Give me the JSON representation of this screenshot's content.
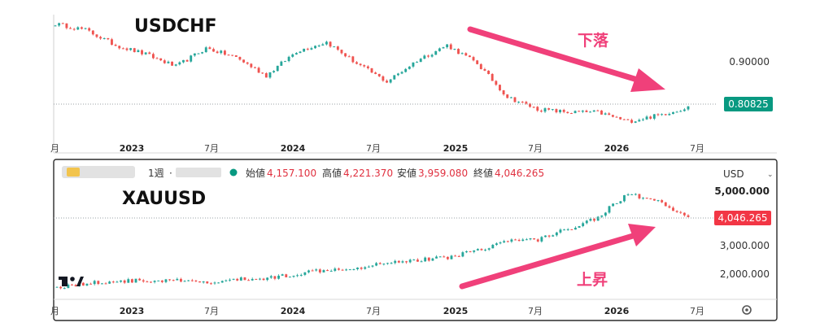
{
  "charts": [
    {
      "id": "top",
      "symbol_label": "USDCHF",
      "price_ticks": [
        "0.90000"
      ],
      "last_price": "0.80825",
      "annotation": "下落",
      "x_ticks": [
        "月",
        "2023",
        "7月",
        "2024",
        "7月",
        "2025",
        "7月",
        "2026",
        "7月"
      ],
      "colors": {
        "up": "#26a69a",
        "down": "#ef5350",
        "badge": "#089981",
        "arrow": "#f0407a"
      }
    },
    {
      "id": "bottom",
      "symbol_label": "XAUUSD",
      "currency": "USD",
      "interval": "1週",
      "ohlc": {
        "open_label": "始値",
        "open": "4,157.100",
        "high_label": "高値",
        "high": "4,221.370",
        "low_label": "安値",
        "low": "3,959.080",
        "close_label": "終値",
        "close": "4,046.265"
      },
      "price_ticks": [
        "5,000.000",
        "3,000.000",
        "2,000.000"
      ],
      "last_price": "4,046.265",
      "annotation": "上昇",
      "x_ticks": [
        "月",
        "2023",
        "7月",
        "2024",
        "7月",
        "2025",
        "7月",
        "2026",
        "7月"
      ],
      "colors": {
        "up": "#26a69a",
        "down": "#ef5350",
        "badge": "#f23645",
        "arrow": "#f0407a"
      }
    }
  ],
  "chart_data": [
    {
      "type": "candlestick",
      "symbol": "USDCHF",
      "x": [
        "2022-11",
        "2023-01",
        "2023-03",
        "2023-05",
        "2023-07",
        "2023-09",
        "2023-11",
        "2024-01",
        "2024-03",
        "2024-05",
        "2024-07",
        "2024-09",
        "2024-11",
        "2025-01",
        "2025-03",
        "2025-05",
        "2025-07",
        "2025-09",
        "2025-11",
        "2026-01",
        "2026-03",
        "2026-05"
      ],
      "close": [
        0.945,
        0.935,
        0.91,
        0.895,
        0.875,
        0.905,
        0.89,
        0.86,
        0.9,
        0.915,
        0.88,
        0.85,
        0.885,
        0.91,
        0.88,
        0.825,
        0.805,
        0.8,
        0.8,
        0.785,
        0.795,
        0.808
      ],
      "ylim": [
        0.76,
        0.96
      ]
    },
    {
      "type": "candlestick",
      "symbol": "XAUUSD",
      "x": [
        "2022-11",
        "2023-01",
        "2023-03",
        "2023-05",
        "2023-07",
        "2023-09",
        "2023-11",
        "2024-01",
        "2024-03",
        "2024-05",
        "2024-07",
        "2024-09",
        "2024-11",
        "2025-01",
        "2025-03",
        "2025-05",
        "2025-07",
        "2025-09",
        "2025-11",
        "2026-01",
        "2026-03",
        "2026-05"
      ],
      "close": [
        1750,
        1870,
        1950,
        1960,
        1960,
        1880,
        2000,
        2040,
        2200,
        2350,
        2400,
        2600,
        2650,
        2750,
        3000,
        3300,
        3350,
        3700,
        4100,
        4900,
        4600,
        4046
      ],
      "ylim": [
        1500,
        5600
      ]
    }
  ]
}
